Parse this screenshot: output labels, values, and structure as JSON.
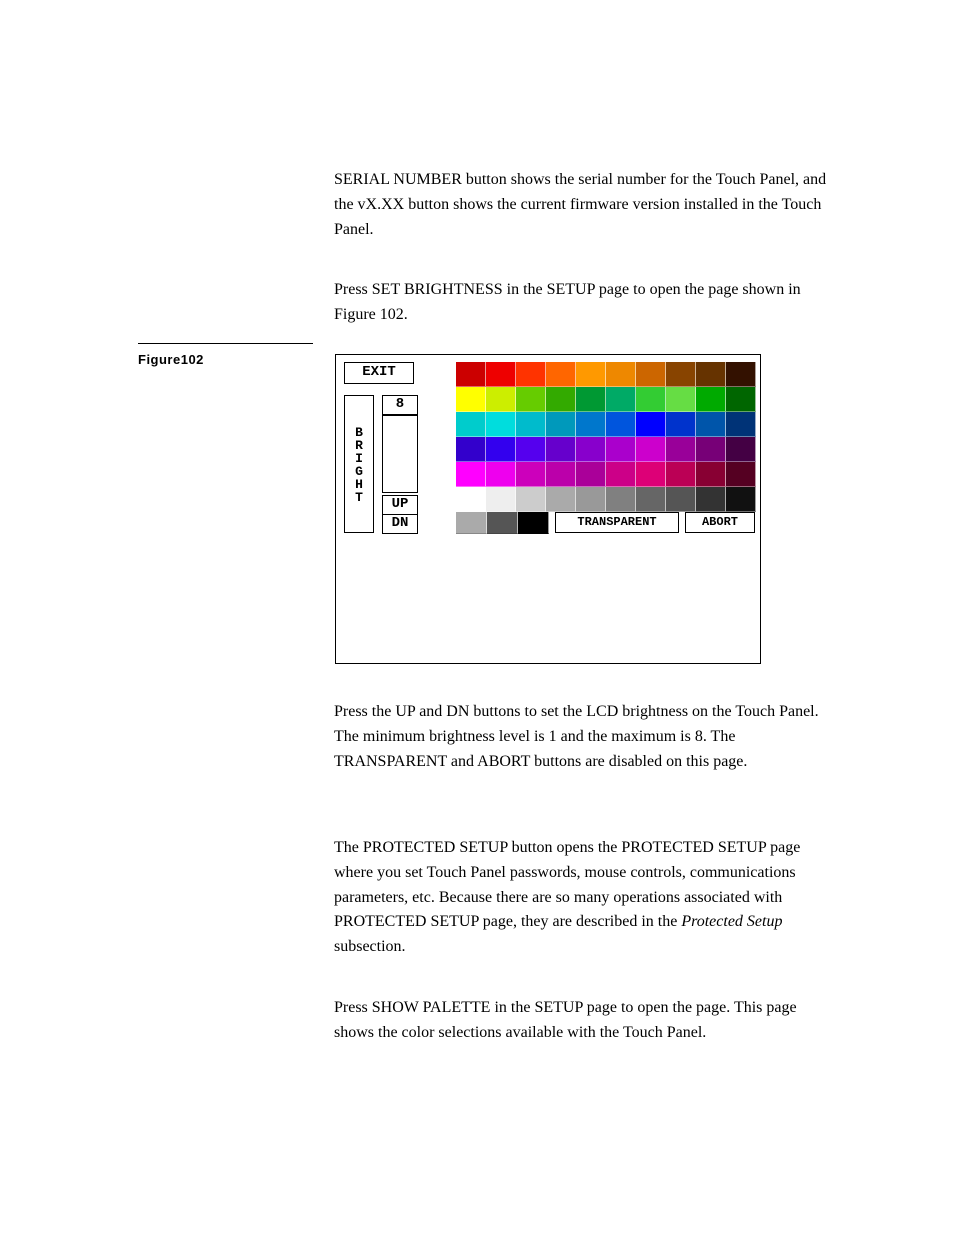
{
  "paragraphs": {
    "p1": "SERIAL NUMBER button shows the serial number for the Touch Panel, and the vX.XX button shows the current firmware version installed in the Touch Panel.",
    "p2": "Press SET BRIGHTNESS in the SETUP page to open the page shown in Figure 102.",
    "p3": "Press the UP and DN buttons to set the LCD brightness on the Touch Panel. The minimum brightness level is 1 and the maximum is 8. The TRANSPARENT and ABORT buttons are disabled on this page.",
    "p4a": "The PROTECTED SETUP button opens the PROTECTED SETUP page where you set Touch Panel passwords, mouse controls, communications parameters, etc. Because there are so many operations associated with PROTECTED SETUP page, they are described in the ",
    "p4_italic": "Protected Setup",
    "p4b": " subsection.",
    "p5": "Press SHOW PALETTE in the SETUP page to open the page. This page shows the color selections available with the Touch Panel."
  },
  "figure": {
    "label": "Figure102",
    "exit": "EXIT",
    "level": "8",
    "up": "UP",
    "dn": "DN",
    "bright": [
      "B",
      "R",
      "I",
      "G",
      "H",
      "T"
    ],
    "transparent": "TRANSPARENT",
    "abort": "ABORT",
    "palette_colors": [
      "#cc0000",
      "#ee0000",
      "#ff3300",
      "#ff6600",
      "#ff9900",
      "#ee8800",
      "#cc6600",
      "#884400",
      "#663300",
      "#331100",
      "#ffff00",
      "#ccee00",
      "#66cc00",
      "#33aa00",
      "#009933",
      "#00aa66",
      "#33cc33",
      "#66dd44",
      "#00aa00",
      "#006600",
      "#00cccc",
      "#00dddd",
      "#00bbcc",
      "#0099bb",
      "#0077cc",
      "#0055dd",
      "#0000ff",
      "#0033cc",
      "#0055aa",
      "#003377",
      "#3300cc",
      "#3300ee",
      "#5500ee",
      "#6600cc",
      "#8800cc",
      "#aa00cc",
      "#cc00cc",
      "#990099",
      "#770077",
      "#440044",
      "#ff00ff",
      "#ee00ee",
      "#cc00bb",
      "#bb00aa",
      "#aa0099",
      "#cc0088",
      "#dd0077",
      "#bb0055",
      "#880033",
      "#550022",
      "#ffffff",
      "#eeeeee",
      "#cccccc",
      "#aaaaaa",
      "#999999",
      "#808080",
      "#666666",
      "#555555",
      "#333333",
      "#111111"
    ],
    "bottom_swatches": [
      "#aaaaaa",
      "#555555",
      "#000000"
    ],
    "styling": {
      "box_border": "#000000",
      "background": "#ffffff",
      "font": "monospace-bold",
      "grid_cols": 10,
      "grid_rows": 6,
      "cell_border": "rgba(255,255,255,0.6)"
    }
  }
}
